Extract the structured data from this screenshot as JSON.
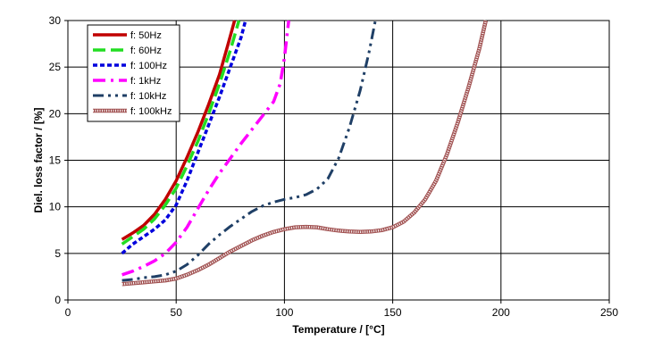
{
  "chart_data": {
    "type": "line",
    "title": "",
    "xlabel": "Temperature / [°C]",
    "ylabel": "Diel. loss factor / [%]",
    "xlim": [
      0,
      250
    ],
    "ylim": [
      0,
      30
    ],
    "x_ticks": [
      0,
      50,
      100,
      150,
      200,
      250
    ],
    "y_ticks": [
      0,
      5,
      10,
      15,
      20,
      25,
      30
    ],
    "grid": true,
    "legend_position": "top-left",
    "series": [
      {
        "name": "f: 50Hz",
        "color": "#c00000",
        "style": "solid",
        "points": [
          [
            25,
            6.5
          ],
          [
            30,
            7.2
          ],
          [
            35,
            8.0
          ],
          [
            40,
            9.2
          ],
          [
            45,
            10.8
          ],
          [
            50,
            12.8
          ],
          [
            55,
            15.3
          ],
          [
            60,
            18.0
          ],
          [
            65,
            21.0
          ],
          [
            70,
            24.2
          ],
          [
            74,
            27.5
          ],
          [
            77,
            30
          ]
        ]
      },
      {
        "name": "f: 60Hz",
        "color": "#22dd22",
        "style": "dash",
        "points": [
          [
            25,
            6.0
          ],
          [
            30,
            6.8
          ],
          [
            35,
            7.6
          ],
          [
            40,
            8.7
          ],
          [
            45,
            10.2
          ],
          [
            50,
            12.0
          ],
          [
            55,
            14.4
          ],
          [
            60,
            17.0
          ],
          [
            65,
            20.0
          ],
          [
            70,
            23.2
          ],
          [
            75,
            26.8
          ],
          [
            79,
            30
          ]
        ]
      },
      {
        "name": "f: 100Hz",
        "color": "#0000dd",
        "style": "dot",
        "points": [
          [
            25,
            5.0
          ],
          [
            30,
            6.0
          ],
          [
            35,
            6.8
          ],
          [
            40,
            7.6
          ],
          [
            45,
            8.6
          ],
          [
            50,
            10.2
          ],
          [
            55,
            12.8
          ],
          [
            60,
            15.8
          ],
          [
            65,
            18.8
          ],
          [
            70,
            21.8
          ],
          [
            75,
            25.0
          ],
          [
            80,
            28.2
          ],
          [
            82,
            30
          ]
        ]
      },
      {
        "name": "f: 1kHz",
        "color": "#ff00ff",
        "style": "dashdot",
        "points": [
          [
            25,
            2.7
          ],
          [
            30,
            3.1
          ],
          [
            35,
            3.6
          ],
          [
            40,
            4.2
          ],
          [
            45,
            5.0
          ],
          [
            50,
            6.2
          ],
          [
            55,
            7.8
          ],
          [
            60,
            9.8
          ],
          [
            65,
            11.8
          ],
          [
            70,
            13.6
          ],
          [
            75,
            15.2
          ],
          [
            80,
            16.8
          ],
          [
            85,
            18.3
          ],
          [
            90,
            19.8
          ],
          [
            95,
            21.3
          ],
          [
            98,
            23.2
          ],
          [
            100,
            26
          ],
          [
            101,
            28
          ],
          [
            102,
            30
          ]
        ]
      },
      {
        "name": "f: 10kHz",
        "color": "#1f3f66",
        "style": "dashdotdot",
        "points": [
          [
            25,
            2.1
          ],
          [
            30,
            2.2
          ],
          [
            35,
            2.4
          ],
          [
            40,
            2.5
          ],
          [
            45,
            2.7
          ],
          [
            50,
            3.1
          ],
          [
            55,
            3.8
          ],
          [
            60,
            4.8
          ],
          [
            65,
            6.0
          ],
          [
            70,
            7.0
          ],
          [
            75,
            7.9
          ],
          [
            80,
            8.7
          ],
          [
            85,
            9.5
          ],
          [
            90,
            10.1
          ],
          [
            95,
            10.5
          ],
          [
            100,
            10.8
          ],
          [
            105,
            11.0
          ],
          [
            110,
            11.3
          ],
          [
            115,
            11.9
          ],
          [
            120,
            13.0
          ],
          [
            125,
            15.2
          ],
          [
            130,
            18.5
          ],
          [
            135,
            22.5
          ],
          [
            139,
            26.5
          ],
          [
            142,
            30
          ]
        ]
      },
      {
        "name": "f: 100kHz",
        "color": "#a05050",
        "style": "hatched",
        "points": [
          [
            25,
            1.7
          ],
          [
            30,
            1.8
          ],
          [
            35,
            1.9
          ],
          [
            40,
            2.0
          ],
          [
            45,
            2.1
          ],
          [
            50,
            2.3
          ],
          [
            55,
            2.7
          ],
          [
            60,
            3.2
          ],
          [
            65,
            3.8
          ],
          [
            70,
            4.5
          ],
          [
            75,
            5.2
          ],
          [
            80,
            5.8
          ],
          [
            85,
            6.4
          ],
          [
            90,
            6.9
          ],
          [
            95,
            7.3
          ],
          [
            100,
            7.6
          ],
          [
            105,
            7.8
          ],
          [
            110,
            7.85
          ],
          [
            115,
            7.8
          ],
          [
            120,
            7.6
          ],
          [
            125,
            7.45
          ],
          [
            130,
            7.35
          ],
          [
            135,
            7.3
          ],
          [
            140,
            7.35
          ],
          [
            145,
            7.5
          ],
          [
            150,
            7.8
          ],
          [
            155,
            8.4
          ],
          [
            160,
            9.4
          ],
          [
            165,
            10.8
          ],
          [
            170,
            12.8
          ],
          [
            175,
            15.6
          ],
          [
            180,
            19.0
          ],
          [
            185,
            22.8
          ],
          [
            190,
            27.0
          ],
          [
            193,
            30
          ]
        ]
      }
    ]
  }
}
